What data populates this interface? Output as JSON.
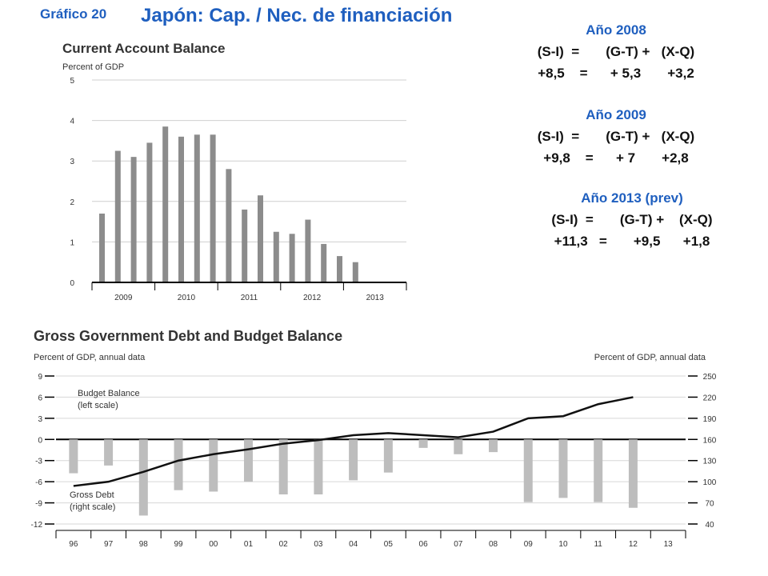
{
  "header": {
    "chart_number": "Gráfico 20",
    "title": "Japón: Cap. / Nec. de financiación"
  },
  "equations": [
    {
      "year": "Año 2008",
      "formula": "(S-I)  =       (G-T) +   (X-Q)",
      "values": "+8,5    =      + 5,3       +3,2"
    },
    {
      "year": "Año 2009",
      "formula": "(S-I)  =       (G-T) +   (X-Q)",
      "values": "+9,8    =      + 7       +2,8"
    },
    {
      "year": "Año 2013 (prev)",
      "formula": "(S-I)  =       (G-T) +    (X-Q)",
      "values": "+11,3   =       +9,5      +1,8"
    }
  ],
  "chart_data": [
    {
      "type": "bar",
      "title": "Current Account Balance",
      "ylabel": "Percent of GDP",
      "ylim": [
        0,
        5
      ],
      "yticks": [
        "0",
        "1",
        "2",
        "3",
        "4",
        "5"
      ],
      "xticks": [
        "2009",
        "2010",
        "2011",
        "2012",
        "2013"
      ],
      "grid": true,
      "values": [
        1.7,
        3.25,
        3.1,
        3.45,
        3.85,
        3.6,
        3.65,
        3.65,
        2.8,
        1.8,
        2.15,
        1.25,
        1.2,
        1.55,
        0.95,
        0.65,
        0.5
      ],
      "color": "#8c8c8c"
    },
    {
      "type": "bar+line",
      "title": "Gross Government Debt and Budget Balance",
      "ylabel_left": "Percent of GDP, annual data",
      "ylabel_right": "Percent of GDP, annual data",
      "categories": [
        "96",
        "97",
        "98",
        "99",
        "00",
        "01",
        "02",
        "03",
        "04",
        "05",
        "06",
        "07",
        "08",
        "09",
        "10",
        "11",
        "12",
        "13"
      ],
      "left_axis": {
        "ylim": [
          -12,
          9
        ],
        "ticks": [
          "9",
          "6",
          "3",
          "0",
          "-3",
          "-6",
          "-9",
          "-12"
        ]
      },
      "right_axis": {
        "ylim": [
          40,
          250
        ],
        "ticks": [
          "250",
          "220",
          "190",
          "160",
          "130",
          "100",
          "70",
          "40"
        ]
      },
      "series": [
        {
          "name": "Budget Balance\n(left scale)",
          "kind": "bar",
          "axis": "left",
          "color": "#bdbdbd",
          "values": [
            -4.8,
            -3.7,
            -10.8,
            -7.2,
            -7.4,
            -6.0,
            -7.8,
            -7.8,
            -5.8,
            -4.7,
            -1.2,
            -2.1,
            -1.8,
            -8.9,
            -8.3,
            -8.9,
            -9.7,
            null
          ]
        },
        {
          "name": "Gross Debt\n(right scale)",
          "kind": "line",
          "axis": "right",
          "color": "#111111",
          "values": [
            94,
            100,
            114,
            130,
            139,
            146,
            154,
            159,
            166,
            169,
            166,
            163,
            171,
            190,
            193,
            210,
            220,
            null
          ]
        }
      ],
      "grid": true
    }
  ]
}
